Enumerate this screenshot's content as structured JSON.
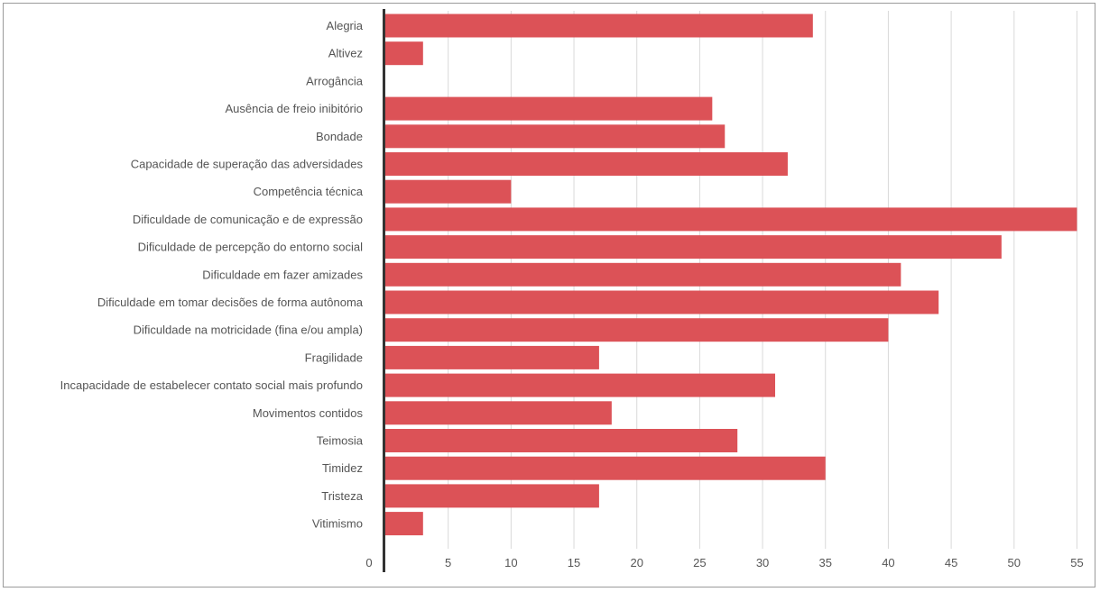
{
  "chart_data": {
    "type": "bar",
    "orientation": "horizontal",
    "title": "",
    "xlabel": "",
    "ylabel": "",
    "categories": [
      "Alegria",
      "Altivez",
      "Arrogância",
      "Ausência de freio inibitório",
      "Bondade",
      "Capacidade de superação das adversidades",
      "Competência técnica",
      "Dificuldade de comunicação e de expressão",
      "Dificuldade de percepção do entorno social",
      "Dificuldade em fazer amizades",
      "Dificuldade em tomar decisões de forma autônoma",
      "Dificuldade na motricidade (fina e/ou ampla)",
      "Fragilidade",
      "Incapacidade de estabelecer contato social mais profundo",
      "Movimentos contidos",
      "Teimosia",
      "Timidez",
      "Tristeza",
      "Vitimismo"
    ],
    "values": [
      34,
      3,
      0,
      26,
      27,
      32,
      10,
      55,
      49,
      41,
      44,
      40,
      17,
      31,
      18,
      28,
      35,
      17,
      3
    ],
    "xlim": [
      0,
      55
    ],
    "ticks": [
      "0",
      "5",
      "10",
      "15",
      "20",
      "25",
      "30",
      "35",
      "40",
      "45",
      "50",
      "55"
    ],
    "grid": true,
    "legend": "none",
    "colors": {
      "bar": "#dc5257",
      "grid": "#d9d9d9",
      "axis": "#333333",
      "text": "#555555"
    }
  }
}
